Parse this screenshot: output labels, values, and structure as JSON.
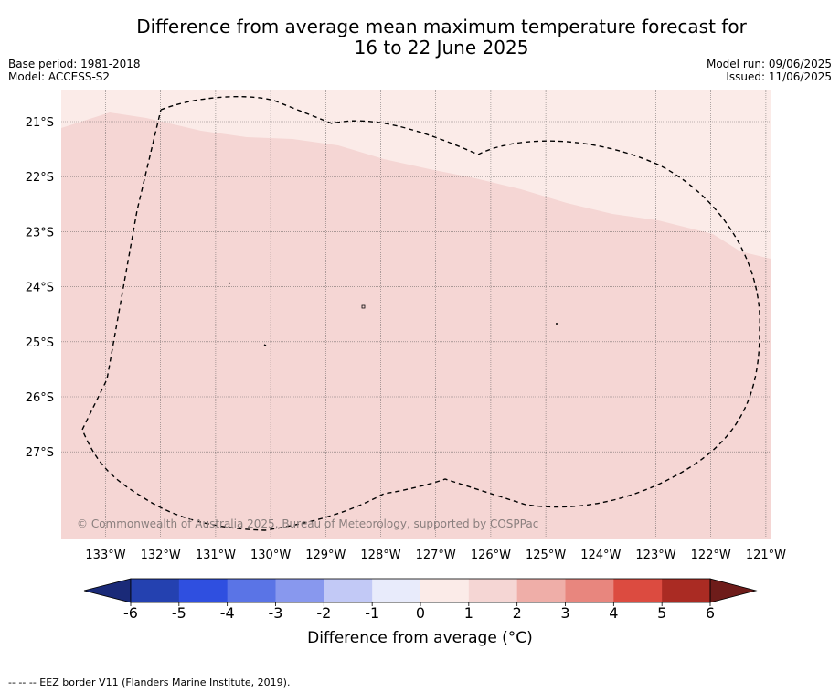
{
  "title": {
    "line1": "Difference from average mean maximum temperature forecast for",
    "line2": "16 to 22 June 2025"
  },
  "meta": {
    "base_period": "Base period: 1981-2018",
    "model": "Model: ACCESS-S2",
    "model_run": "Model run: 09/06/2025",
    "issued": "Issued: 11/06/2025"
  },
  "map": {
    "copyright": "© Commonwealth of Australia 2025, Bureau of Meteorology, supported by COSPPac",
    "lat_labels": [
      "21°S",
      "22°S",
      "23°S",
      "24°S",
      "25°S",
      "26°S",
      "27°S"
    ],
    "lon_labels": [
      "133°W",
      "132°W",
      "131°W",
      "130°W",
      "129°W",
      "128°W",
      "127°W",
      "126°W",
      "125°W",
      "124°W",
      "123°W",
      "122°W",
      "121°W"
    ],
    "field_bins": [
      {
        "range": "0 to 1",
        "color": "#fbebe8"
      },
      {
        "range": "1 to 2",
        "color": "#f5d6d4"
      }
    ]
  },
  "colorbar": {
    "label": "Difference from average (°C)",
    "ticks": [
      "-6",
      "-5",
      "-4",
      "-3",
      "-2",
      "-1",
      "0",
      "1",
      "2",
      "3",
      "4",
      "5",
      "6"
    ],
    "under_color": "#1a2a78",
    "over_color": "#6e1c1a",
    "colors": [
      "#2441b0",
      "#2f4fe0",
      "#5a74e6",
      "#8898ee",
      "#c2c9f6",
      "#e8ebfb",
      "#fbebe8",
      "#f5d6d4",
      "#efaea8",
      "#e8867e",
      "#dc4b40",
      "#aa2b23"
    ]
  },
  "footer": {
    "eez_legend": "--  --  -- EEZ border V11 (Flanders Marine Institute, 2019)."
  }
}
